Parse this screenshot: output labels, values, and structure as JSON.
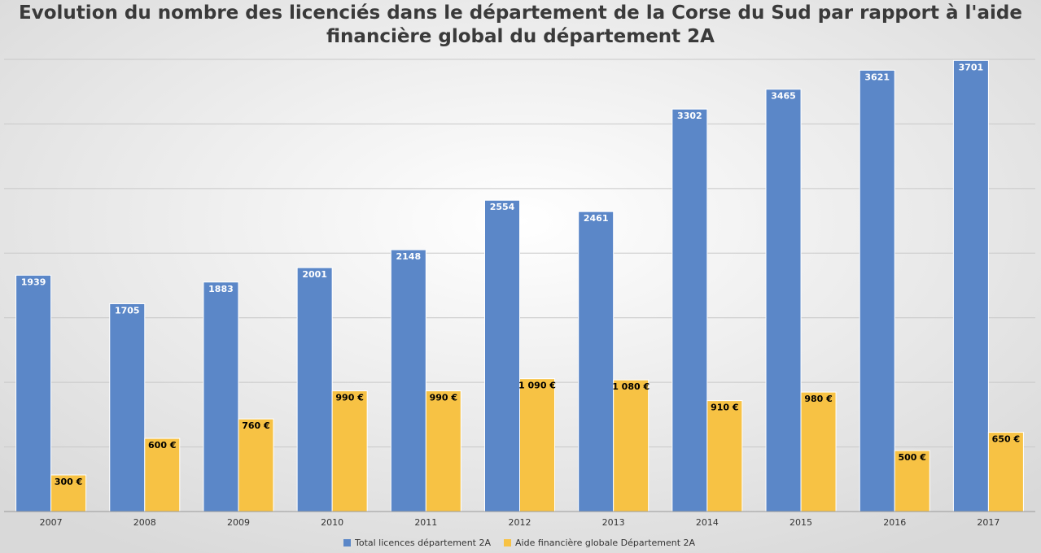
{
  "chart_data": {
    "type": "bar",
    "title": "Evolution du nombre des licenciés dans le département de la Corse du Sud par rapport à l'aide financière global du département 2A",
    "categories": [
      "2007",
      "2008",
      "2009",
      "2010",
      "2011",
      "2012",
      "2013",
      "2014",
      "2015",
      "2016",
      "2017"
    ],
    "series": [
      {
        "name": "Total licences département 2A",
        "color": "#5b87c8",
        "values": [
          1939,
          1705,
          1883,
          2001,
          2148,
          2554,
          2461,
          3302,
          3465,
          3621,
          3701
        ]
      },
      {
        "name": "Aide financière globale Département 2A",
        "color": "#f7c244",
        "values": [
          300,
          600,
          760,
          990,
          990,
          1090,
          1080,
          910,
          980,
          500,
          650
        ],
        "value_labels": [
          "300 €",
          "600 €",
          "760 €",
          "990 €",
          "990 €",
          "1 090 €",
          "1 080 €",
          "910 €",
          "980 €",
          "500 €",
          "650 €"
        ]
      }
    ],
    "ylim": [
      0,
      3710
    ],
    "yticks": [
      0,
      530,
      1060,
      1590,
      2120,
      2650,
      3180,
      3710
    ],
    "grid": true,
    "legend": "bottom"
  }
}
